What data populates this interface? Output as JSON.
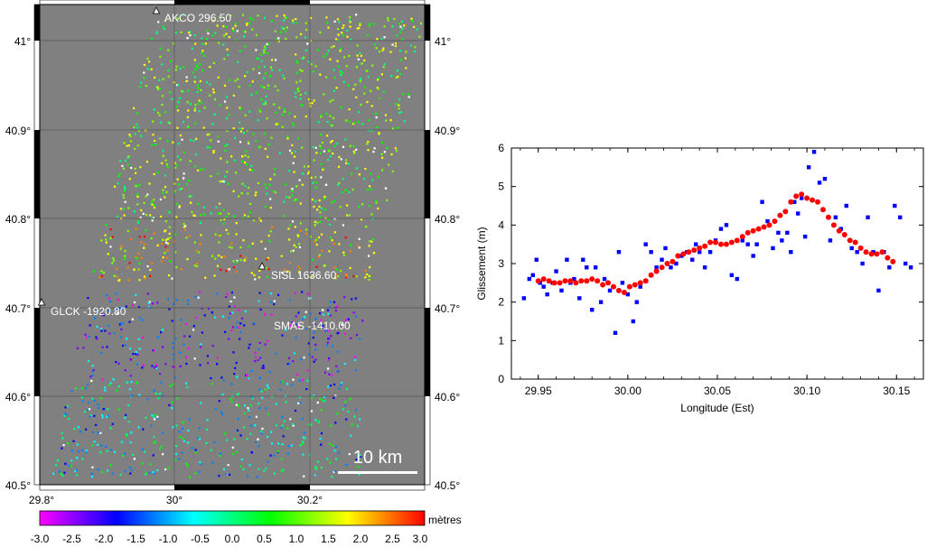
{
  "map": {
    "lat_labels": [
      "41°",
      "40.9°",
      "40.8°",
      "40.7°",
      "40.6°",
      "40.5°"
    ],
    "lon_labels": [
      "29.8°",
      "30°",
      "30.2°"
    ],
    "stations": [
      {
        "name": "AKCO",
        "label": "AKCO 296.50"
      },
      {
        "name": "SISL",
        "label": "SISL 1636.60"
      },
      {
        "name": "GLCK",
        "label": "GLCK -1920.80"
      },
      {
        "name": "SMAS",
        "label": "SMAS -1410.00"
      }
    ],
    "scale_bar_label": "10 km",
    "colorbar": {
      "unit": "mètres",
      "ticks": [
        "-3.0",
        "-2.5",
        "-2.0",
        "-1.5",
        "-1.0",
        "-0.5",
        "0.0",
        "0.5",
        "1.0",
        "1.5",
        "2.0",
        "2.5",
        "3.0"
      ],
      "range": [
        -3.0,
        3.0
      ],
      "colors": [
        "#ff00ff",
        "#8000ff",
        "#0000ff",
        "#0080ff",
        "#00ffff",
        "#00ff80",
        "#00ff00",
        "#80ff00",
        "#ffff00",
        "#ff8000",
        "#ff0000"
      ]
    },
    "background_color": "#808080"
  },
  "chart_data": {
    "type": "scatter",
    "xlabel": "Longitude (Est)",
    "ylabel": "Glissement (m)",
    "xlim": [
      29.935,
      30.165
    ],
    "ylim": [
      0,
      6
    ],
    "x_ticks": [
      "29.95",
      "30.00",
      "30.05",
      "30.10",
      "30.15"
    ],
    "y_ticks": [
      "0",
      "1",
      "2",
      "3",
      "4",
      "5",
      "6"
    ],
    "series": [
      {
        "color": "#0000ff",
        "marker": "square",
        "x": [
          29.942,
          29.945,
          29.947,
          29.949,
          29.951,
          29.953,
          29.955,
          29.958,
          29.96,
          29.963,
          29.966,
          29.968,
          29.97,
          29.973,
          29.975,
          29.977,
          29.98,
          29.982,
          29.985,
          29.987,
          29.99,
          29.993,
          29.995,
          29.997,
          30.0,
          30.003,
          30.005,
          30.007,
          30.01,
          30.013,
          30.016,
          30.019,
          30.021,
          30.024,
          30.027,
          30.03,
          30.033,
          30.036,
          30.038,
          30.04,
          30.043,
          30.046,
          30.049,
          30.052,
          30.055,
          30.058,
          30.061,
          30.064,
          30.067,
          30.07,
          30.072,
          30.075,
          30.078,
          30.081,
          30.084,
          30.086,
          30.089,
          30.091,
          30.093,
          30.095,
          30.097,
          30.099,
          30.101,
          30.104,
          30.107,
          30.11,
          30.113,
          30.116,
          30.119,
          30.122,
          30.125,
          30.128,
          30.131,
          30.134,
          30.137,
          30.14,
          30.143,
          30.146,
          30.149,
          30.152,
          30.155,
          30.158
        ],
        "y": [
          2.1,
          2.6,
          2.7,
          3.1,
          2.5,
          2.4,
          2.2,
          2.5,
          2.8,
          2.3,
          3.1,
          2.5,
          2.6,
          2.1,
          3.1,
          2.9,
          1.8,
          2.9,
          2.0,
          2.6,
          2.3,
          1.2,
          3.3,
          2.5,
          2.2,
          1.5,
          2.0,
          2.4,
          3.5,
          3.3,
          2.9,
          3.1,
          3.4,
          2.9,
          3.0,
          3.2,
          3.3,
          3.1,
          3.5,
          3.3,
          2.9,
          3.3,
          3.6,
          3.9,
          4.0,
          2.7,
          2.6,
          3.6,
          3.5,
          3.2,
          3.5,
          4.6,
          4.1,
          3.4,
          3.8,
          3.6,
          3.8,
          3.3,
          4.6,
          4.3,
          4.7,
          3.7,
          5.5,
          5.9,
          5.1,
          5.2,
          3.6,
          4.2,
          3.9,
          4.5,
          3.4,
          3.3,
          3.0,
          4.2,
          3.3,
          2.3,
          3.3,
          2.9,
          4.5,
          4.2,
          3.0,
          2.9
        ]
      },
      {
        "color": "#ff0000",
        "marker": "circle",
        "x": [
          29.95,
          29.953,
          29.956,
          29.959,
          29.962,
          29.965,
          29.968,
          29.971,
          29.974,
          29.977,
          29.98,
          29.983,
          29.986,
          29.989,
          29.992,
          29.995,
          29.998,
          30.001,
          30.004,
          30.007,
          30.01,
          30.013,
          30.016,
          30.019,
          30.022,
          30.025,
          30.028,
          30.031,
          30.034,
          30.037,
          30.04,
          30.043,
          30.046,
          30.049,
          30.052,
          30.055,
          30.058,
          30.061,
          30.064,
          30.067,
          30.07,
          30.073,
          30.076,
          30.079,
          30.082,
          30.085,
          30.088,
          30.091,
          30.094,
          30.097,
          30.1,
          30.103,
          30.106,
          30.109,
          30.112,
          30.115,
          30.118,
          30.121,
          30.124,
          30.127,
          30.13,
          30.133,
          30.136,
          30.139,
          30.142,
          30.145,
          30.148
        ],
        "y": [
          2.55,
          2.6,
          2.55,
          2.5,
          2.5,
          2.55,
          2.55,
          2.5,
          2.55,
          2.55,
          2.6,
          2.55,
          2.45,
          2.5,
          2.4,
          2.3,
          2.25,
          2.4,
          2.45,
          2.5,
          2.55,
          2.7,
          2.8,
          2.9,
          3.0,
          3.05,
          3.2,
          3.25,
          3.3,
          3.35,
          3.4,
          3.45,
          3.55,
          3.55,
          3.5,
          3.5,
          3.55,
          3.6,
          3.7,
          3.8,
          3.85,
          3.9,
          3.95,
          4.0,
          4.1,
          4.25,
          4.35,
          4.6,
          4.75,
          4.8,
          4.7,
          4.65,
          4.6,
          4.4,
          4.2,
          4.0,
          3.85,
          3.75,
          3.6,
          3.55,
          3.4,
          3.3,
          3.25,
          3.25,
          3.3,
          3.15,
          3.05
        ]
      }
    ]
  }
}
